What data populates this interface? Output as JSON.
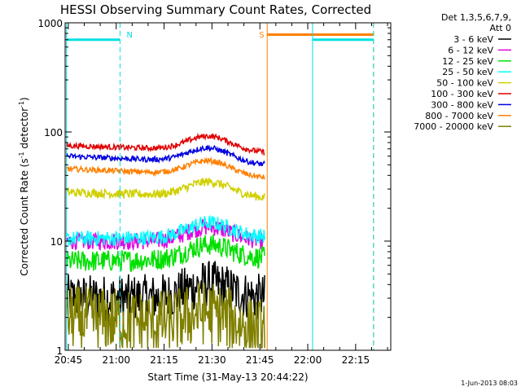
{
  "chart_data": {
    "type": "line",
    "title": "HESSI Observing Summary Count Rates, Corrected",
    "xlabel": "Start Time (31-May-13 20:44:22)",
    "ylabel_main": "Corrected Count Rate (s",
    "ylabel_sup1": "-1",
    "ylabel_mid": " detector",
    "ylabel_sup2": "-1",
    "ylabel_end": ")",
    "y_scale": "log",
    "ylim": [
      1,
      1000
    ],
    "xlim": [
      "20:44",
      "22:26"
    ],
    "x_ticks": [
      {
        "label": "20:45",
        "min": 45
      },
      {
        "label": "21:00",
        "min": 60
      },
      {
        "label": "21:15",
        "min": 75
      },
      {
        "label": "21:30",
        "min": 90
      },
      {
        "label": "21:45",
        "min": 105
      },
      {
        "label": "22:00",
        "min": 120
      },
      {
        "label": "22:15",
        "min": 135
      }
    ],
    "y_ticks": [
      {
        "label": "1",
        "v": 1
      },
      {
        "label": "10",
        "v": 10
      },
      {
        "label": "100",
        "v": 100
      },
      {
        "label": "1000",
        "v": 1000
      }
    ],
    "legend_header": [
      "Det 1,3,5,6,7,9,",
      "Att 0"
    ],
    "legend_position": "right",
    "series": [
      {
        "name": "3 - 6 keV",
        "color": "#000000",
        "level_start": 3,
        "level_end": 3,
        "noise": 0.22
      },
      {
        "name": "6 - 12 keV",
        "color": "#e000e0",
        "level_start": 10,
        "level_end": 10,
        "noise": 0.08
      },
      {
        "name": "12 - 25 keV",
        "color": "#00e000",
        "level_start": 6.5,
        "level_end": 7,
        "noise": 0.1
      },
      {
        "name": "25 - 50 keV",
        "color": "#00ffff",
        "level_start": 10.5,
        "level_end": 11,
        "noise": 0.07
      },
      {
        "name": "50 - 100 keV",
        "color": "#d0d000",
        "level_start": 28,
        "level_end": 25,
        "noise": 0.04
      },
      {
        "name": "100 - 300 keV",
        "color": "#e00000",
        "level_start": 75,
        "level_end": 65,
        "noise": 0.025
      },
      {
        "name": "300 - 800 keV",
        "color": "#0000e0",
        "level_start": 60,
        "level_end": 50,
        "noise": 0.025
      },
      {
        "name": "800 - 7000 keV",
        "color": "#ff8000",
        "level_start": 46,
        "level_end": 38,
        "noise": 0.025
      },
      {
        "name": "7000 - 20000 keV",
        "color": "#808000",
        "level_start": 2,
        "level_end": 1.5,
        "noise": 0.3
      }
    ],
    "data_window": {
      "start_min": 44.4,
      "end_min": 106.5
    },
    "markers": [
      {
        "label": "N",
        "color": "#00e0e0",
        "start_min": 44.4,
        "end_min": 61.2,
        "level": 700
      },
      {
        "label": "S",
        "color": "#ff8000",
        "start_min": 107.3,
        "end_min": 140.6,
        "level": 780
      },
      {
        "label": "",
        "color": "#00e0e0",
        "start_min": 121.5,
        "end_min": 140.6,
        "level": 700
      }
    ],
    "footer_date": "1-Jun-2013 08:03"
  }
}
